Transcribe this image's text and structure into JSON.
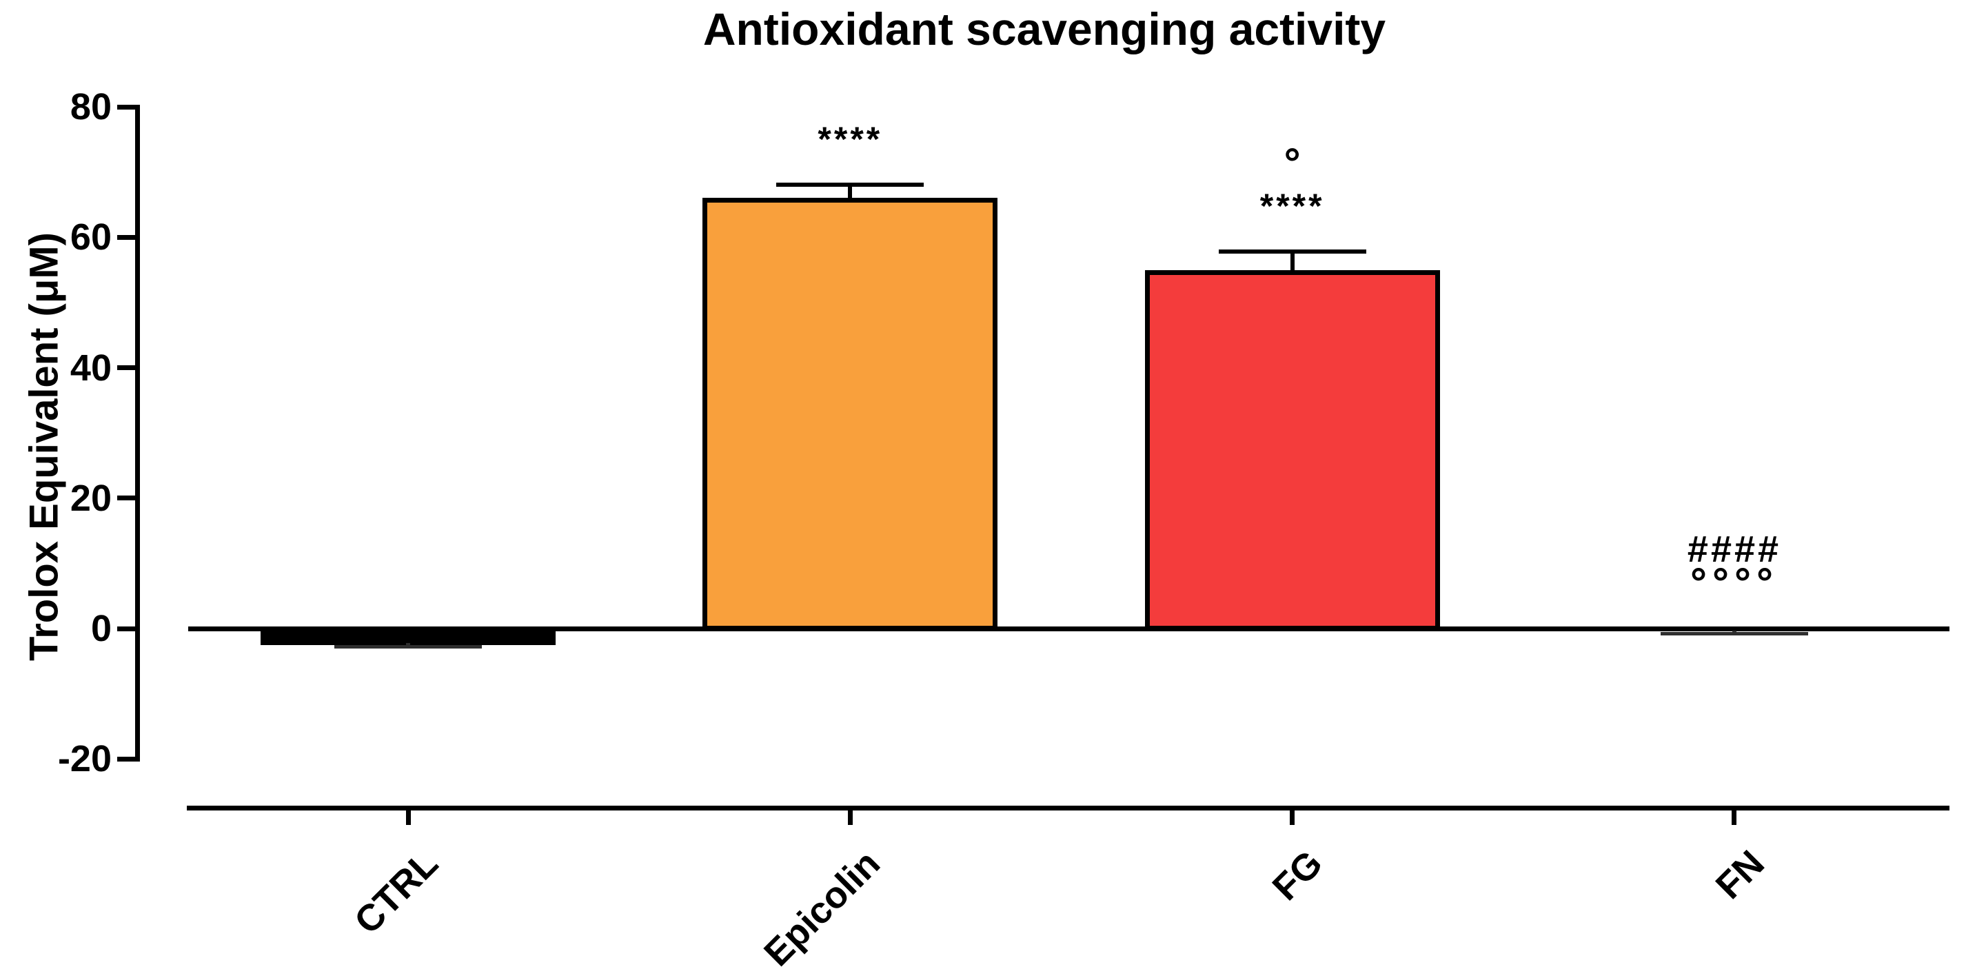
{
  "chart_data": {
    "type": "bar",
    "title": "Antioxidant scavenging activity",
    "xlabel": "",
    "ylabel": "Trolox Equivalent (μM)",
    "categories": [
      "CTRL",
      "Epicolin",
      "FG",
      "FN"
    ],
    "values": [
      -2.2,
      65.7,
      54.6,
      -0.3
    ],
    "errors": [
      0.65,
      2.4,
      3.2,
      0.5
    ],
    "error_style": "upper-whisker-with-cap",
    "bar_colors": [
      "#000000",
      "#F9A03C",
      "#F43C3C",
      "#FFFFFF"
    ],
    "bar_border_color": "#000000",
    "annotations": [
      [],
      [
        "****"
      ],
      [
        "****",
        "°"
      ],
      [
        "°°°°",
        "####"
      ]
    ],
    "ylim": [
      -20,
      80
    ],
    "yticks": [
      80,
      60,
      40,
      20,
      0,
      -20
    ],
    "grid": false,
    "legend": "none",
    "background_color": "#FFFFFF",
    "axis_color": "#000000",
    "x_label_rotation_deg": 45
  }
}
